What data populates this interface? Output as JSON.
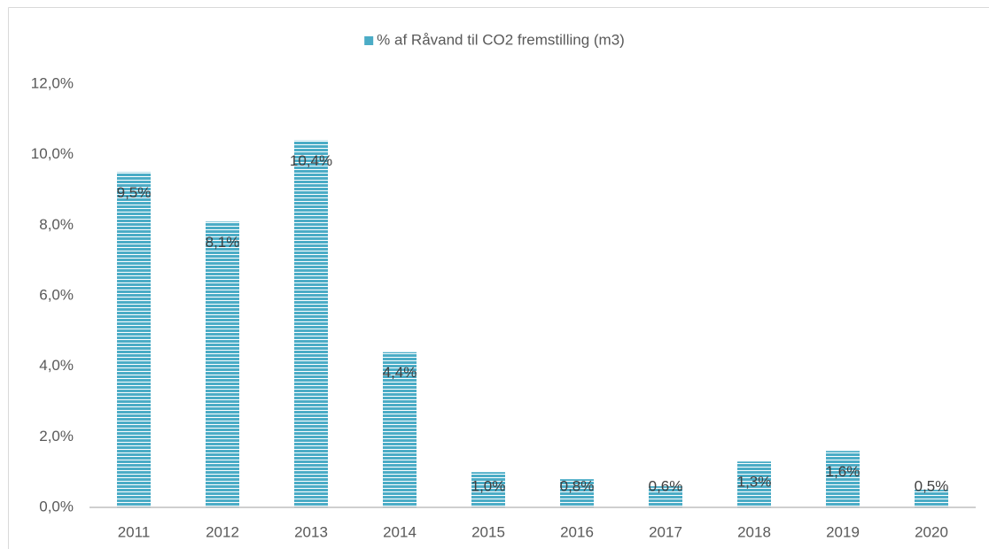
{
  "chart_data": {
    "type": "bar",
    "categories": [
      "2011",
      "2012",
      "2013",
      "2014",
      "2015",
      "2016",
      "2017",
      "2018",
      "2019",
      "2020"
    ],
    "series": [
      {
        "name": "% af Råvand til CO2 fremstilling (m3)",
        "color": "#4bacc6",
        "values": [
          9.5,
          8.1,
          10.4,
          4.4,
          1.0,
          0.8,
          0.6,
          1.3,
          1.6,
          0.5
        ],
        "value_labels": [
          "9,5%",
          "8,1%",
          "10,4%",
          "4,4%",
          "1,0%",
          "0,8%",
          "0,6%",
          "1,3%",
          "1,6%",
          "0,5%"
        ]
      }
    ],
    "ylim": [
      0,
      12
    ],
    "yticks": [
      {
        "value": 0,
        "label": "0,0%"
      },
      {
        "value": 2,
        "label": "2,0%"
      },
      {
        "value": 4,
        "label": "4,0%"
      },
      {
        "value": 6,
        "label": "6,0%"
      },
      {
        "value": 8,
        "label": "8,0%"
      },
      {
        "value": 10,
        "label": "10,0%"
      },
      {
        "value": 12,
        "label": "12,0%"
      }
    ],
    "legend": "top",
    "grid": false
  }
}
